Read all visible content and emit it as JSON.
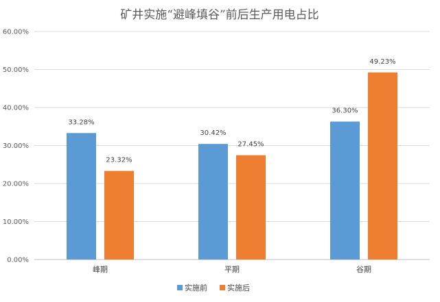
{
  "chart_data": {
    "type": "bar",
    "title": "矿井实施“避峰填谷”前后生产用电占比",
    "categories": [
      "峰期",
      "平期",
      "谷期"
    ],
    "series": [
      {
        "name": "实施前",
        "values": [
          33.28,
          30.42,
          36.3
        ],
        "labels": [
          "33.28%",
          "30.42%",
          "36.30%"
        ],
        "color": "#5B9BD5"
      },
      {
        "name": "实施后",
        "values": [
          23.32,
          27.45,
          49.23
        ],
        "labels": [
          "23.32%",
          "27.45%",
          "49.23%"
        ],
        "color": "#ED7D31"
      }
    ],
    "ylim": [
      0,
      60
    ],
    "yticks": [
      "0.00%",
      "10.00%",
      "20.00%",
      "30.00%",
      "40.00%",
      "50.00%",
      "60.00%"
    ],
    "grid": true,
    "legend_position": "bottom"
  }
}
